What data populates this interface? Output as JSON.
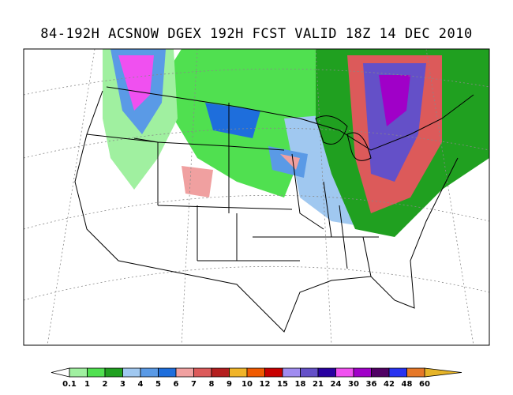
{
  "title": "84-192H ACSNOW DGEX 192H FCST VALID 18Z 14 DEC 2010",
  "colorbar": {
    "levels": [
      0.1,
      1,
      2,
      3,
      4,
      5,
      6,
      7,
      8,
      9,
      10,
      12,
      15,
      18,
      21,
      24,
      30,
      36,
      42,
      48,
      60
    ],
    "colors": [
      "#a0f0a0",
      "#50e050",
      "#20a020",
      "#a0c8f0",
      "#5a9ae6",
      "#1e6edc",
      "#f0a0a0",
      "#dc5a5a",
      "#b41e1e",
      "#f0b428",
      "#f05a00",
      "#c80000",
      "#a08cf0",
      "#6450c8",
      "#2800a0",
      "#f050f0",
      "#a000c8",
      "#500064",
      "#2832f0",
      "#e67828"
    ],
    "under_color": "#ffffff",
    "over_color": "#e6b428"
  }
}
